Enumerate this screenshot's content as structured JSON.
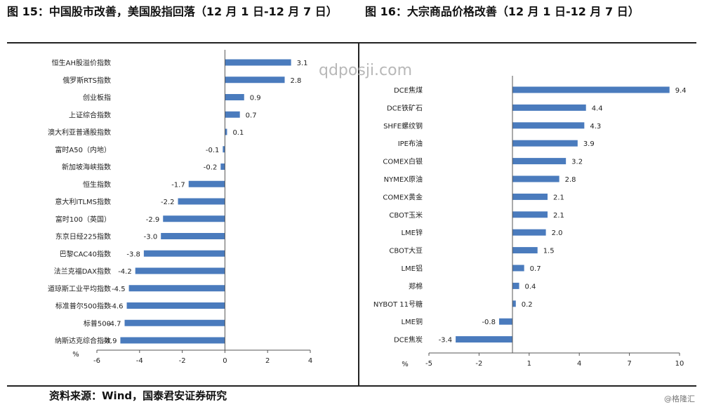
{
  "titles": {
    "left": "图 15：中国股市改善，美国股指回落（12 月 1 日-12 月 7 日）",
    "right": "图 16：大宗商品价格改善（12 月 1 日-12 月 7 日）"
  },
  "source": "资料来源：Wind，国泰君安证券研究",
  "watermark": "qdposji.com",
  "logo": "@格隆汇",
  "colors": {
    "bar": "#4a7bbd"
  },
  "chart_data": [
    {
      "type": "bar",
      "orientation": "horizontal",
      "title": "图 15：中国股市改善，美国股指回落（12 月 1 日-12 月 7 日）",
      "categories": [
        "恒生AH股溢价指数",
        "俄罗斯RTS指数",
        "创业板指",
        "上证综合指数",
        "澳大利亚普通股指数",
        "富时A50（内地）",
        "新加坡海峡指数",
        "恒生指数",
        "意大利ITLMS指数",
        "富时100（英国）",
        "东京日经225指数",
        "巴黎CAC40指数",
        "法兰克福DAX指数",
        "道琼斯工业平均指数",
        "标准普尔500指数",
        "标普500",
        "纳斯达克综合指数"
      ],
      "values": [
        3.1,
        2.8,
        0.9,
        0.7,
        0.1,
        -0.1,
        -0.2,
        -1.7,
        -2.2,
        -2.9,
        -3.0,
        -3.8,
        -4.2,
        -4.5,
        -4.6,
        -4.7,
        -4.9
      ],
      "labels": [
        "3.1",
        "2.8",
        "0.9",
        "0.7",
        "0.1",
        "-0.1",
        "-0.2",
        "-1.7",
        "-2.2",
        "-2.9",
        "-3.0",
        "-3.8",
        "-4.2",
        "-4.5",
        "-4.6",
        "-4.7",
        "-4.9"
      ],
      "xlim": [
        -6,
        4
      ],
      "xticks": [
        -6,
        -4,
        -2,
        0,
        2,
        4
      ],
      "unit": "%",
      "grid": false
    },
    {
      "type": "bar",
      "orientation": "horizontal",
      "title": "图 16：大宗商品价格改善（12 月 1 日-12 月 7 日）",
      "categories": [
        "DCE焦煤",
        "DCE铁矿石",
        "SHFE螺纹钢",
        "IPE布油",
        "COMEX白银",
        "NYMEX原油",
        "COMEX黄金",
        "CBOT玉米",
        "LME锌",
        "CBOT大豆",
        "LME铝",
        "郑棉",
        "NYBOT 11号糖",
        "LME铜",
        "DCE焦炭"
      ],
      "values": [
        9.4,
        4.4,
        4.3,
        3.9,
        3.2,
        2.8,
        2.1,
        2.1,
        2.0,
        1.5,
        0.7,
        0.4,
        0.2,
        -0.8,
        -3.4
      ],
      "labels": [
        "9.4",
        "4.4",
        "4.3",
        "3.9",
        "3.2",
        "2.8",
        "2.1",
        "2.1",
        "2.0",
        "1.5",
        "0.7",
        "0.4",
        "0.2",
        "-0.8",
        "-3.4"
      ],
      "xlim": [
        -5,
        10
      ],
      "xticks": [
        -5,
        -2,
        1,
        4,
        7,
        10
      ],
      "unit": "%",
      "grid": false
    }
  ]
}
